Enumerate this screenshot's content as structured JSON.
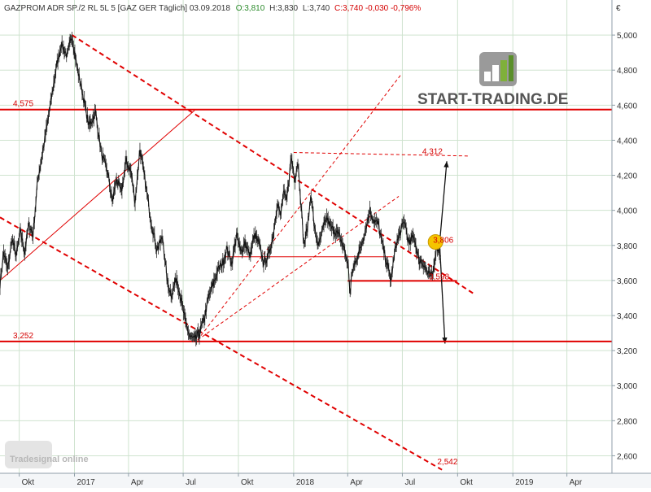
{
  "header": {
    "instrument": "GAZPROM ADR SP./2 RL 5L 5 [GAZ GER  Täglich] 03.09.2018",
    "open": "O:3,810",
    "high": "H:3,830",
    "low": "L:3,740",
    "close": "C:3,740 -0,030 -0,796%"
  },
  "currency": "€",
  "logo": {
    "brand": "START-TRADING.DE"
  },
  "watermark": {
    "text": "Tradesignal online"
  },
  "colors": {
    "price": "#111111",
    "level": "#e00000",
    "grid": "#cfe3cf",
    "bull": "#2a8a2a",
    "bear": "#d40000",
    "marker": "#f5c400"
  },
  "chart_data": {
    "type": "line",
    "ylim": [
      2.5,
      5.2
    ],
    "xlim": [
      "2016-08-30",
      "2019-06-15"
    ],
    "yticks": [
      "2,600",
      "2,800",
      "3,000",
      "3,200",
      "3,400",
      "3,600",
      "3,800",
      "4,000",
      "4,200",
      "4,400",
      "4,600",
      "4,800",
      "5,000"
    ],
    "xticks": [
      {
        "date": "2016-10-01",
        "label": "Okt"
      },
      {
        "date": "2017-01-01",
        "label": "2017"
      },
      {
        "date": "2017-04-01",
        "label": "Apr"
      },
      {
        "date": "2017-07-01",
        "label": "Jul"
      },
      {
        "date": "2017-10-01",
        "label": "Okt"
      },
      {
        "date": "2018-01-01",
        "label": "2018"
      },
      {
        "date": "2018-04-01",
        "label": "Apr"
      },
      {
        "date": "2018-07-01",
        "label": "Jul"
      },
      {
        "date": "2018-10-01",
        "label": "Okt"
      },
      {
        "date": "2019-01-01",
        "label": "2019"
      },
      {
        "date": "2019-04-01",
        "label": "Apr"
      }
    ],
    "series": [
      {
        "values": [
          [
            "2016-08-30",
            3.58
          ],
          [
            "2016-09-05",
            3.76
          ],
          [
            "2016-09-12",
            3.66
          ],
          [
            "2016-09-19",
            3.84
          ],
          [
            "2016-09-26",
            3.74
          ],
          [
            "2016-10-03",
            3.88
          ],
          [
            "2016-10-10",
            3.76
          ],
          [
            "2016-10-17",
            3.92
          ],
          [
            "2016-10-24",
            3.86
          ],
          [
            "2016-11-01",
            4.18
          ],
          [
            "2016-11-10",
            4.35
          ],
          [
            "2016-11-20",
            4.56
          ],
          [
            "2016-12-01",
            4.8
          ],
          [
            "2016-12-10",
            4.95
          ],
          [
            "2016-12-20",
            4.88
          ],
          [
            "2016-12-28",
            5.0
          ],
          [
            "2017-01-05",
            4.82
          ],
          [
            "2017-01-15",
            4.66
          ],
          [
            "2017-01-25",
            4.48
          ],
          [
            "2017-02-05",
            4.56
          ],
          [
            "2017-02-15",
            4.32
          ],
          [
            "2017-02-25",
            4.22
          ],
          [
            "2017-03-05",
            4.05
          ],
          [
            "2017-03-12",
            4.18
          ],
          [
            "2017-03-20",
            4.1
          ],
          [
            "2017-03-28",
            4.28
          ],
          [
            "2017-04-05",
            4.22
          ],
          [
            "2017-04-12",
            4.05
          ],
          [
            "2017-04-20",
            4.35
          ],
          [
            "2017-04-28",
            4.18
          ],
          [
            "2017-05-08",
            3.95
          ],
          [
            "2017-05-18",
            3.78
          ],
          [
            "2017-05-28",
            3.84
          ],
          [
            "2017-06-05",
            3.58
          ],
          [
            "2017-06-12",
            3.52
          ],
          [
            "2017-06-20",
            3.62
          ],
          [
            "2017-06-28",
            3.48
          ],
          [
            "2017-07-05",
            3.36
          ],
          [
            "2017-07-12",
            3.28
          ],
          [
            "2017-07-20",
            3.26
          ],
          [
            "2017-07-28",
            3.3
          ],
          [
            "2017-08-05",
            3.38
          ],
          [
            "2017-08-12",
            3.5
          ],
          [
            "2017-08-20",
            3.58
          ],
          [
            "2017-08-28",
            3.66
          ],
          [
            "2017-09-05",
            3.7
          ],
          [
            "2017-09-12",
            3.78
          ],
          [
            "2017-09-20",
            3.7
          ],
          [
            "2017-09-28",
            3.86
          ],
          [
            "2017-10-05",
            3.76
          ],
          [
            "2017-10-12",
            3.82
          ],
          [
            "2017-10-20",
            3.74
          ],
          [
            "2017-10-28",
            3.86
          ],
          [
            "2017-11-05",
            3.8
          ],
          [
            "2017-11-12",
            3.7
          ],
          [
            "2017-11-20",
            3.74
          ],
          [
            "2017-11-28",
            3.86
          ],
          [
            "2017-12-05",
            4.05
          ],
          [
            "2017-12-10",
            3.96
          ],
          [
            "2017-12-15",
            4.1
          ],
          [
            "2017-12-20",
            4.05
          ],
          [
            "2017-12-28",
            4.3
          ],
          [
            "2018-01-03",
            4.18
          ],
          [
            "2018-01-08",
            4.28
          ],
          [
            "2018-01-12",
            4.1
          ],
          [
            "2018-01-18",
            3.8
          ],
          [
            "2018-01-24",
            3.9
          ],
          [
            "2018-01-30",
            4.1
          ],
          [
            "2018-02-05",
            3.88
          ],
          [
            "2018-02-12",
            3.8
          ],
          [
            "2018-02-18",
            3.88
          ],
          [
            "2018-02-25",
            3.96
          ],
          [
            "2018-03-04",
            3.9
          ],
          [
            "2018-03-12",
            3.88
          ],
          [
            "2018-03-20",
            3.84
          ],
          [
            "2018-03-26",
            3.78
          ],
          [
            "2018-04-02",
            3.68
          ],
          [
            "2018-04-05",
            3.52
          ],
          [
            "2018-04-08",
            3.64
          ],
          [
            "2018-04-15",
            3.72
          ],
          [
            "2018-04-22",
            3.78
          ],
          [
            "2018-05-01",
            3.9
          ],
          [
            "2018-05-08",
            4.0
          ],
          [
            "2018-05-15",
            3.94
          ],
          [
            "2018-05-22",
            3.92
          ],
          [
            "2018-05-29",
            3.8
          ],
          [
            "2018-06-05",
            3.7
          ],
          [
            "2018-06-12",
            3.6
          ],
          [
            "2018-06-20",
            3.8
          ],
          [
            "2018-06-28",
            3.88
          ],
          [
            "2018-07-05",
            3.94
          ],
          [
            "2018-07-12",
            3.8
          ],
          [
            "2018-07-20",
            3.86
          ],
          [
            "2018-07-28",
            3.72
          ],
          [
            "2018-08-05",
            3.7
          ],
          [
            "2018-08-12",
            3.64
          ],
          [
            "2018-08-20",
            3.62
          ],
          [
            "2018-08-27",
            3.8
          ],
          [
            "2018-09-03",
            3.74
          ]
        ]
      }
    ],
    "horizontal_levels": [
      {
        "value": 4.575,
        "label": "4,575"
      },
      {
        "value": 3.252,
        "label": "3,252"
      }
    ],
    "annotations": [
      {
        "value": 4.312,
        "label": "4,312",
        "date": "2018-08-14"
      },
      {
        "value": 3.806,
        "label": "3,806",
        "date": "2018-09-01"
      },
      {
        "value": 3.598,
        "label": "3,598",
        "date": "2018-08-25"
      },
      {
        "value": 2.542,
        "label": "2,542",
        "date": "2018-09-08"
      }
    ],
    "grid": true
  }
}
